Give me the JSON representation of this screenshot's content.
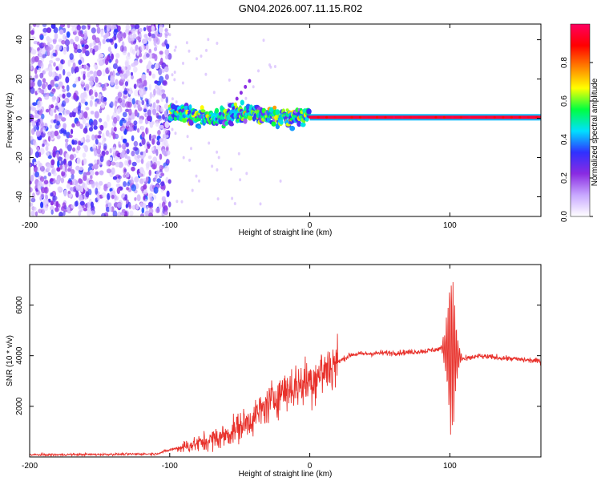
{
  "title": "GN04.2026.007.11.15.R02",
  "chart_data": [
    {
      "type": "heatmap",
      "name": "spectrogram",
      "xlabel": "Height of straight line (km)",
      "ylabel": "Frequency (Hz)",
      "xlim": [
        -200,
        165
      ],
      "ylim": [
        -50,
        48
      ],
      "xticks": [
        -200,
        -100,
        0,
        100
      ],
      "yticks": [
        -40,
        -20,
        0,
        20,
        40
      ],
      "colorbar": {
        "label": "Normalized spectral amplitude",
        "range": [
          0,
          1
        ],
        "ticks": [
          0.0,
          0.2,
          0.4,
          0.6,
          0.8
        ],
        "tick_labels": [
          "0.0",
          "0.2",
          "0.4",
          "0.6",
          "0.8"
        ],
        "stops": [
          "#ffffff",
          "#c8a8ff",
          "#8a2be2",
          "#3030ff",
          "#00e0ff",
          "#00ff40",
          "#ffff00",
          "#ff8000",
          "#ff0000",
          "#ff0060"
        ]
      },
      "regions": [
        {
          "x_range": [
            -200,
            -100
          ],
          "description": "broadband noise",
          "amplitude": 0.15
        },
        {
          "x_range": [
            -100,
            0
          ],
          "center_freq": 1.5,
          "amplitude": 0.45,
          "width_hz": 3
        },
        {
          "x_range": [
            0,
            165
          ],
          "center_freq": 0.5,
          "amplitude": 0.95,
          "width_hz": 1
        }
      ]
    },
    {
      "type": "line",
      "name": "snr",
      "xlabel": "Height of straight line (km)",
      "ylabel": "SNR (10 * v/v)",
      "xlim": [
        -200,
        165
      ],
      "ylim": [
        0,
        7600
      ],
      "xticks": [
        -200,
        -100,
        0,
        100
      ],
      "yticks": [
        2000,
        4000,
        6000
      ],
      "color": "#e8302a",
      "series": [
        {
          "name": "SNR",
          "x": [
            -200,
            -150,
            -110,
            -95,
            -80,
            -60,
            -40,
            -20,
            0,
            10,
            20,
            30,
            50,
            70,
            85,
            95,
            100,
            105,
            110,
            120,
            140,
            165
          ],
          "y": [
            80,
            100,
            120,
            350,
            520,
            850,
            1550,
            2600,
            3000,
            3400,
            3750,
            4050,
            4100,
            4130,
            4200,
            4300,
            4100,
            4000,
            3850,
            3980,
            3900,
            3780
          ]
        }
      ]
    }
  ]
}
